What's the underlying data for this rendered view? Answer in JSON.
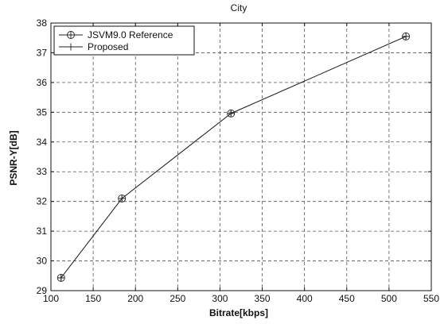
{
  "chart_data": {
    "type": "line",
    "title": "City",
    "xlabel": "Bitrate[kbps]",
    "ylabel": "PSNR-Y[dB]",
    "xlim": [
      100,
      550
    ],
    "ylim": [
      29,
      38
    ],
    "xticks": [
      100,
      150,
      200,
      250,
      300,
      350,
      400,
      450,
      500,
      550
    ],
    "yticks": [
      29,
      30,
      31,
      32,
      33,
      34,
      35,
      36,
      37,
      38
    ],
    "grid": true,
    "legend_position": "top-left",
    "series": [
      {
        "name": "JSVM9.0 Reference",
        "marker": "circle-plus",
        "color": "#222222",
        "x": [
          112,
          184,
          313,
          520
        ],
        "y": [
          29.43,
          32.1,
          34.96,
          37.55
        ]
      },
      {
        "name": "Proposed",
        "marker": "plus",
        "color": "#222222",
        "x": [
          112,
          184,
          313,
          520
        ],
        "y": [
          29.43,
          32.1,
          34.96,
          37.55
        ]
      }
    ]
  }
}
